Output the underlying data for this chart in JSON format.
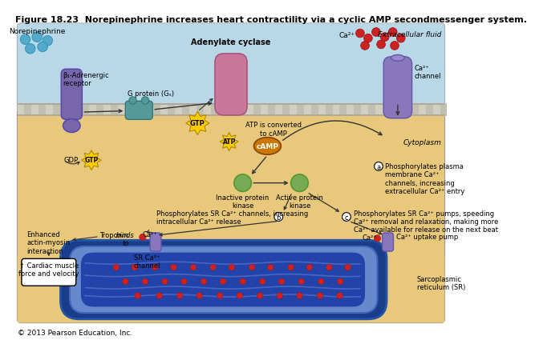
{
  "title": "Figure 18.23  Norepinephrine increases heart contractility via a cyclic AMP secondmessenger system.",
  "copyright": "© 2013 Pearson Education, Inc.",
  "bg_outer": "#ffffff",
  "bg_extracellular": "#b8d8e8",
  "bg_cytoplasm": "#e8c87a",
  "purple_receptor": "#7766aa",
  "purple_channel": "#8877bb",
  "pink_enzyme": "#c8789a",
  "teal_puzzle": "#559999",
  "blue_norepinephrine": "#55aacc",
  "orange_gtp": "#ffcc00",
  "orange_camp": "#cc7700",
  "green_kinase": "#77aa55",
  "red_ca": "#bb2222",
  "border_color": "#999999",
  "membrane_top": "#c8c8b8",
  "membrane_bot": "#b8b8a8"
}
